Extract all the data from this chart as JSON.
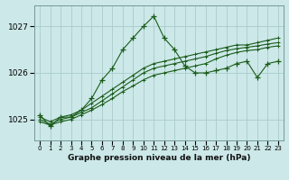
{
  "title": "Graphe pression niveau de la mer (hPa)",
  "xlabel_ticks": [
    "0",
    "1",
    "2",
    "3",
    "4",
    "5",
    "6",
    "7",
    "8",
    "9",
    "10",
    "11",
    "12",
    "13",
    "14",
    "15",
    "16",
    "17",
    "18",
    "19",
    "20",
    "21",
    "22",
    "23"
  ],
  "ylim": [
    1024.55,
    1027.45
  ],
  "yticks": [
    1025,
    1026,
    1027
  ],
  "bg_color": "#cce8e8",
  "line_color": "#1a5c1a",
  "grid_color": "#aacccc",
  "series": [
    [
      1025.1,
      1024.85,
      1025.05,
      1025.05,
      1025.2,
      1025.45,
      1025.85,
      1026.1,
      1026.5,
      1026.75,
      1027.0,
      1027.22,
      1026.75,
      1026.5,
      1026.15,
      1026.0,
      1026.0,
      1026.05,
      1026.1,
      1026.2,
      1026.25,
      1025.9,
      1026.2,
      1026.25
    ],
    [
      1025.05,
      1024.95,
      1025.05,
      1025.1,
      1025.2,
      1025.35,
      1025.5,
      1025.65,
      1025.8,
      1025.95,
      1026.1,
      1026.2,
      1026.25,
      1026.3,
      1026.35,
      1026.4,
      1026.45,
      1026.5,
      1026.55,
      1026.6,
      1026.6,
      1026.65,
      1026.7,
      1026.75
    ],
    [
      1025.0,
      1024.9,
      1025.0,
      1025.05,
      1025.15,
      1025.25,
      1025.4,
      1025.55,
      1025.7,
      1025.85,
      1026.0,
      1026.1,
      1026.15,
      1026.2,
      1026.25,
      1026.3,
      1026.35,
      1026.42,
      1026.48,
      1026.52,
      1026.55,
      1026.58,
      1026.62,
      1026.65
    ],
    [
      1024.95,
      1024.88,
      1024.95,
      1025.0,
      1025.1,
      1025.2,
      1025.32,
      1025.45,
      1025.6,
      1025.72,
      1025.85,
      1025.95,
      1026.0,
      1026.05,
      1026.1,
      1026.15,
      1026.2,
      1026.3,
      1026.38,
      1026.44,
      1026.48,
      1026.5,
      1026.55,
      1026.58
    ]
  ],
  "marker": "+",
  "marker_size": 4,
  "line_width": 0.8,
  "title_fontsize": 6.5,
  "ytick_fontsize": 6.5,
  "xtick_fontsize": 5.0
}
